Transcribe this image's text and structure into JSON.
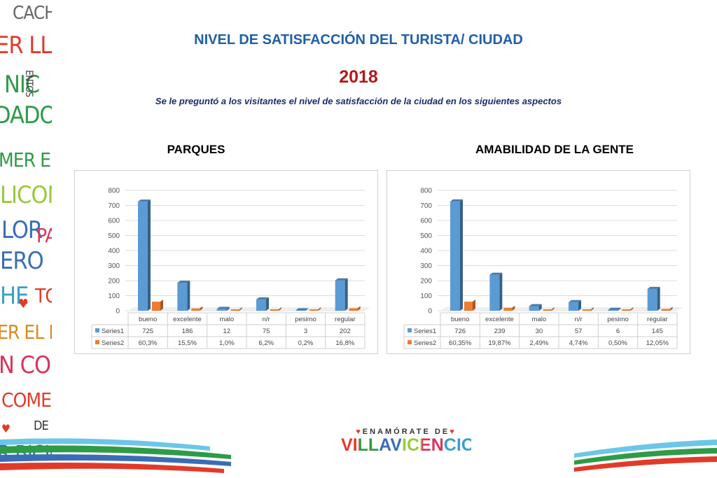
{
  "colors": {
    "title": "#1f5fa8",
    "year": "#b21a1a",
    "series1": "#5b9bd5",
    "series2": "#ed7d31"
  },
  "header": {
    "title": "NIVEL DE SATISFACCIÓN DEL TURISTA/ CIUDAD",
    "year": "2018",
    "subtitle": "Se le preguntó a los visitantes el nivel de satisfacción de la ciudad en los siguientes aspectos"
  },
  "side_words": [
    "CACHA",
    "ER LLAN",
    "NIC",
    "ENTOS",
    "DADORE",
    "MER EL F",
    "LICONT",
    "LOR",
    "PA",
    "ERO",
    "HE",
    "TO",
    "ER EL PARÇ",
    "N CON",
    "COMER",
    "DE",
    "R BICIC"
  ],
  "logo": {
    "top": "ENAMÓRATE DE",
    "main": "VILLAVICENCIO"
  },
  "chart_data": [
    {
      "type": "bar",
      "title": "PARQUES",
      "categories": [
        "bueno",
        "excelente",
        "malo",
        "n/r",
        "pesimo",
        "regular"
      ],
      "series": [
        {
          "name": "Series1",
          "values": [
            725,
            186,
            12,
            75,
            3,
            202
          ],
          "labels": [
            "725",
            "186",
            "12",
            "75",
            "3",
            "202"
          ]
        },
        {
          "name": "Series2",
          "values": [
            60.3,
            15.5,
            1.0,
            6.2,
            0.2,
            16.8
          ],
          "labels": [
            "60,3%",
            "15,5%",
            "1,0%",
            "6,2%",
            "0,2%",
            "16,8%"
          ]
        }
      ],
      "yticks": [
        "0",
        "100",
        "200",
        "300",
        "400",
        "500",
        "600",
        "700",
        "800"
      ],
      "ylim": [
        0,
        800
      ]
    },
    {
      "type": "bar",
      "title": "AMABILIDAD DE LA GENTE",
      "categories": [
        "bueno",
        "excelente",
        "malo",
        "n/r",
        "pesimo",
        "regular"
      ],
      "series": [
        {
          "name": "Series1",
          "values": [
            726,
            239,
            30,
            57,
            6,
            145
          ],
          "labels": [
            "726",
            "239",
            "30",
            "57",
            "6",
            "145"
          ]
        },
        {
          "name": "Series2",
          "values": [
            60.35,
            19.87,
            2.49,
            4.74,
            0.5,
            12.05
          ],
          "labels": [
            "60,35%",
            "19,87%",
            "2,49%",
            "4,74%",
            "0,50%",
            "12,05%"
          ]
        }
      ],
      "yticks": [
        "0",
        "100",
        "200",
        "300",
        "400",
        "500",
        "600",
        "700",
        "800"
      ],
      "ylim": [
        0,
        800
      ]
    }
  ]
}
